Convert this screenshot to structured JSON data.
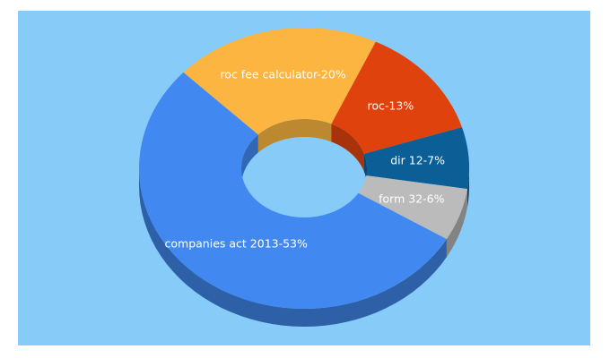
{
  "chart_data": {
    "type": "donut3d",
    "categories": [
      "roc fee calculator-20%",
      "roc-13%",
      "dir 12-7%",
      "form 32-6%",
      "companies act 2013-53%"
    ],
    "values": [
      20,
      13,
      7,
      6,
      53
    ],
    "colors": [
      "#fbb540",
      "#e0420d",
      "#0b5f96",
      "#bbbbbb",
      "#4189f0"
    ],
    "background": "#87cbf9"
  }
}
